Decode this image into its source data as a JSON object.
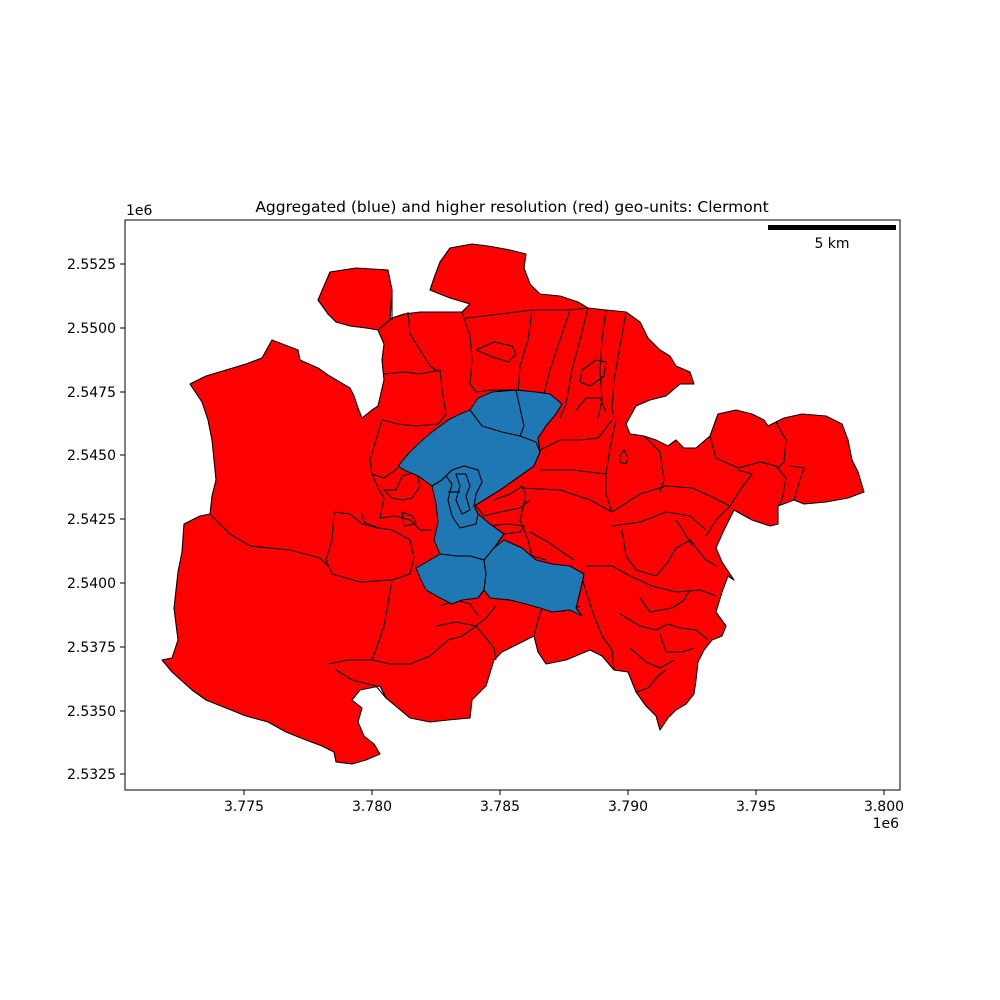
{
  "figure": {
    "title": "Aggregated (blue) and higher resolution (red) geo-units: Clermont",
    "x_axis": {
      "offset_label": "1e6",
      "ticks": [
        "3.775",
        "3.780",
        "3.785",
        "3.790",
        "3.795",
        "3.800"
      ]
    },
    "y_axis": {
      "offset_label": "1e6",
      "ticks": [
        "2.5525",
        "2.5500",
        "2.5475",
        "2.5450",
        "2.5425",
        "2.5400",
        "2.5375",
        "2.5350",
        "2.5325"
      ]
    },
    "scale_bar": {
      "label": "5 km"
    },
    "colors": {
      "aggregated": "#1f77b4",
      "higher_resolution": "#ff0000",
      "boundary": "#000000"
    }
  }
}
